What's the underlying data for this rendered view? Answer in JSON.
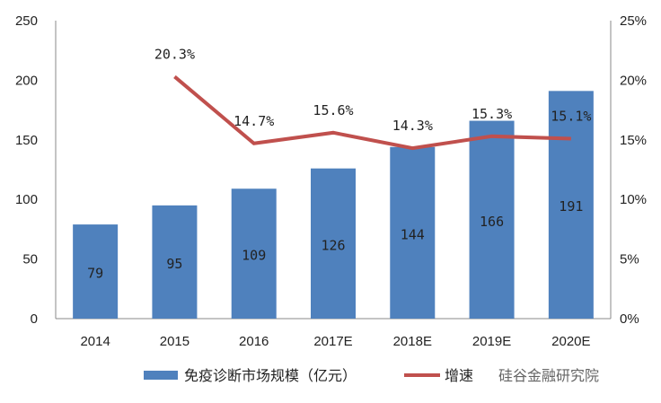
{
  "chart_data": {
    "type": "bar",
    "categories": [
      "2014",
      "2015",
      "2016",
      "2017E",
      "2018E",
      "2019E",
      "2020E"
    ],
    "series": [
      {
        "name": "免疫诊断市场规模（亿元）",
        "type": "bar",
        "axis": "left",
        "values": [
          79,
          95,
          109,
          126,
          144,
          166,
          191
        ],
        "color": "#4F81BD"
      },
      {
        "name": "增速",
        "type": "line",
        "axis": "right",
        "values": [
          null,
          20.3,
          14.7,
          15.6,
          14.3,
          15.3,
          15.1
        ],
        "labels": [
          "",
          "20.3%",
          "14.7%",
          "15.6%",
          "14.3%",
          "15.3%",
          "15.1%"
        ],
        "color": "#C0504D"
      }
    ],
    "left_axis": {
      "ylim": [
        0,
        250
      ],
      "ticks": [
        "0",
        "50",
        "100",
        "150",
        "200",
        "250"
      ]
    },
    "right_axis": {
      "ylim": [
        0,
        25
      ],
      "ticks": [
        "0%",
        "5%",
        "10%",
        "15%",
        "20%",
        "25%"
      ]
    },
    "legend": "bottom"
  },
  "watermark": "硅谷金融研究院"
}
